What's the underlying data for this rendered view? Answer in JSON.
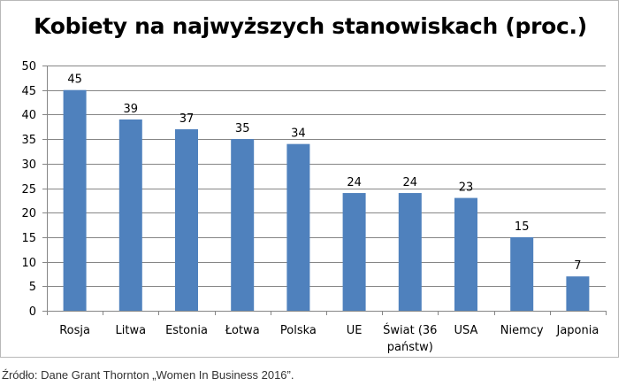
{
  "chart_data": {
    "type": "bar",
    "title": "Kobiety na najwyższych stanowiskach (proc.)",
    "xlabel": "",
    "ylabel": "",
    "categories": [
      [
        "Rosja"
      ],
      [
        "Litwa"
      ],
      [
        "Estonia"
      ],
      [
        "Łotwa"
      ],
      [
        "Polska"
      ],
      [
        "UE"
      ],
      [
        "Świat (36",
        "państw)"
      ],
      [
        "USA"
      ],
      [
        "Niemcy"
      ],
      [
        "Japonia"
      ]
    ],
    "values": [
      45,
      39,
      37,
      35,
      34,
      24,
      24,
      23,
      15,
      7
    ],
    "ylim": [
      0,
      50
    ],
    "yticks": [
      0,
      5,
      10,
      15,
      20,
      25,
      30,
      35,
      40,
      45,
      50
    ],
    "grid": true,
    "legend": "none",
    "bar_color": "#4f81bd",
    "grid_color": "#868686"
  },
  "source": "Źródło: Dane Grant Thornton „Women In Business 2016”."
}
